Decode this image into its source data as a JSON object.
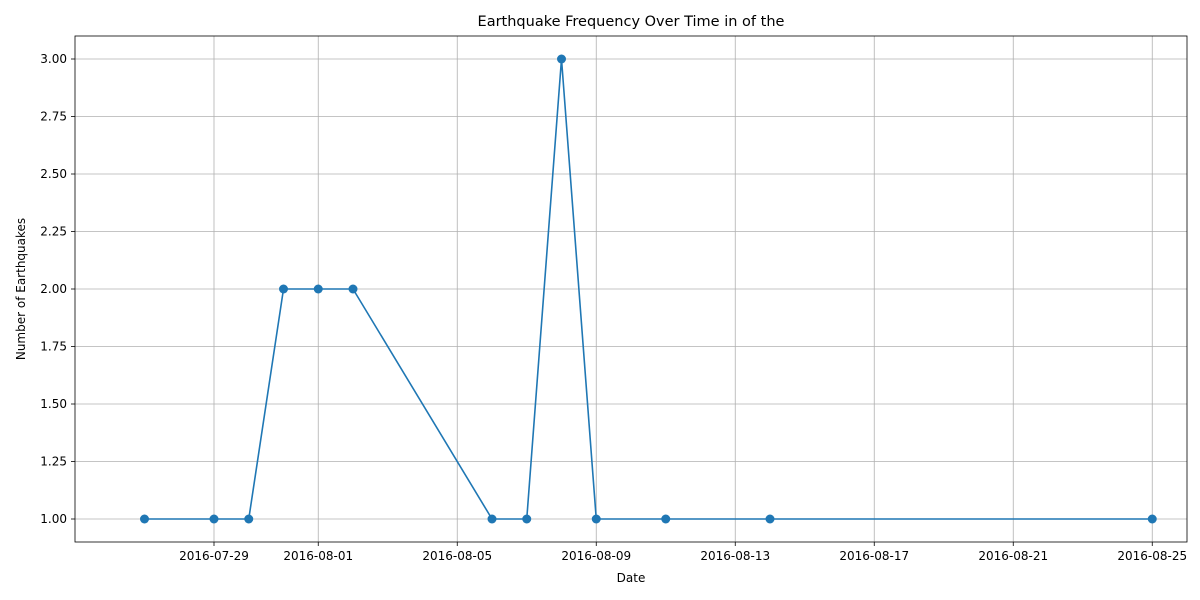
{
  "chart_data": {
    "type": "line",
    "title": "Earthquake Frequency Over Time in of the",
    "xlabel": "Date",
    "ylabel": "Number of Earthquakes",
    "x_scale": "date",
    "xlim": [
      "2016-07-25",
      "2016-08-26"
    ],
    "ylim": [
      0.9,
      3.1
    ],
    "x_ticks": [
      "2016-07-29",
      "2016-08-01",
      "2016-08-05",
      "2016-08-09",
      "2016-08-13",
      "2016-08-17",
      "2016-08-21",
      "2016-08-25"
    ],
    "y_ticks": [
      "1.00",
      "1.25",
      "1.50",
      "1.75",
      "2.00",
      "2.25",
      "2.50",
      "2.75",
      "3.00"
    ],
    "grid": true,
    "color": "#1f77b4",
    "marker": "circle",
    "series": [
      {
        "x": [
          "2016-07-27",
          "2016-07-29",
          "2016-07-30",
          "2016-07-31",
          "2016-08-01",
          "2016-08-02",
          "2016-08-06",
          "2016-08-07",
          "2016-08-08",
          "2016-08-09",
          "2016-08-11",
          "2016-08-14",
          "2016-08-25"
        ],
        "y": [
          1,
          1,
          1,
          2,
          2,
          2,
          1,
          1,
          3,
          1,
          1,
          1,
          1
        ]
      }
    ]
  }
}
